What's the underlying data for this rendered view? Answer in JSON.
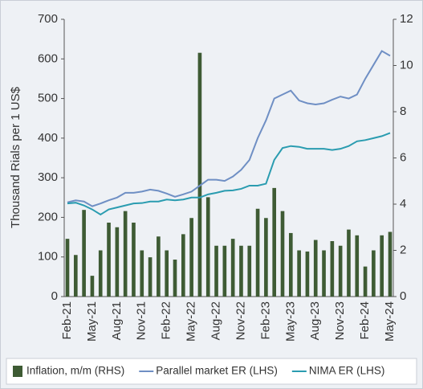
{
  "chart_data": {
    "type": "bar-line",
    "y_label": "Thousand Rials per 1 US$",
    "categories": [
      "Feb-21",
      null,
      null,
      "May-21",
      null,
      null,
      "Aug-21",
      null,
      null,
      "Nov-21",
      null,
      null,
      "Feb-22",
      null,
      null,
      "May-22",
      null,
      null,
      "Aug-22",
      null,
      null,
      "Nov-22",
      null,
      null,
      "Feb-23",
      null,
      null,
      "May-23",
      null,
      null,
      "Aug-23",
      null,
      null,
      "Nov-23",
      null,
      null,
      "Feb-24",
      null,
      null,
      "May-24"
    ],
    "series": [
      {
        "name": "Inflation, m/m (RHS)",
        "color": "#3e5b34",
        "kind": "bar",
        "axis": "y2",
        "values": [
          2.5,
          1.8,
          3.75,
          0.9,
          2.0,
          3.2,
          3.0,
          3.7,
          3.2,
          2.0,
          1.7,
          2.6,
          2.0,
          1.6,
          2.7,
          3.4,
          10.55,
          4.3,
          2.2,
          2.2,
          2.5,
          2.2,
          2.2,
          3.8,
          3.4,
          4.7,
          3.7,
          2.75,
          2.0,
          1.95,
          2.45,
          2.0,
          2.4,
          2.2,
          2.9,
          2.65,
          1.3,
          2.0,
          2.65,
          2.8
        ]
      },
      {
        "name": "Parallel market ER (LHS)",
        "color": "#6f8fc4",
        "kind": "line",
        "values": [
          238,
          243,
          240,
          228,
          235,
          243,
          250,
          262,
          262,
          265,
          270,
          267,
          260,
          252,
          258,
          265,
          280,
          295,
          295,
          292,
          303,
          320,
          345,
          400,
          445,
          500,
          510,
          520,
          495,
          488,
          485,
          488,
          497,
          505,
          500,
          510,
          550,
          585,
          620,
          608
        ]
      },
      {
        "name": "NIMA ER (LHS)",
        "color": "#2a9cb0",
        "kind": "line",
        "values": [
          235,
          237,
          230,
          220,
          207,
          220,
          225,
          230,
          235,
          236,
          240,
          240,
          245,
          243,
          245,
          250,
          250,
          258,
          262,
          267,
          268,
          272,
          280,
          280,
          285,
          345,
          375,
          380,
          378,
          373,
          373,
          373,
          370,
          373,
          380,
          392,
          395,
          400,
          405,
          413
        ]
      }
    ],
    "ylim": [
      0,
      700
    ],
    "yticks": [
      0,
      100,
      200,
      300,
      400,
      500,
      600,
      700
    ],
    "y2lim": [
      0,
      12
    ],
    "y2ticks": [
      0,
      2,
      4,
      6,
      8,
      10,
      12
    ]
  }
}
